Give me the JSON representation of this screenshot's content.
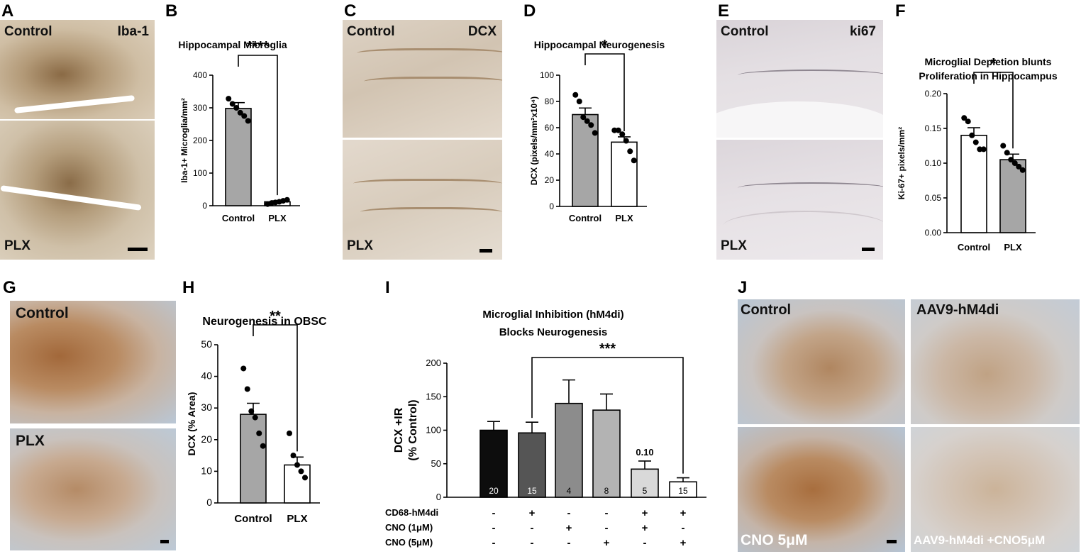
{
  "panels": {
    "A": {
      "letter": "A",
      "top_label": "Control",
      "top_marker": "Iba-1",
      "bottom_label": "PLX"
    },
    "B": {
      "letter": "B"
    },
    "C": {
      "letter": "C",
      "top_label": "Control",
      "top_marker": "DCX",
      "bottom_label": "PLX"
    },
    "D": {
      "letter": "D"
    },
    "E": {
      "letter": "E",
      "top_label": "Control",
      "top_marker": "ki67",
      "bottom_label": "PLX"
    },
    "F": {
      "letter": "F"
    },
    "G": {
      "letter": "G",
      "top_label": "Control",
      "bottom_label": "PLX"
    },
    "H": {
      "letter": "H"
    },
    "I": {
      "letter": "I"
    },
    "J": {
      "letter": "J",
      "tl_label": "Control",
      "tr_label": "AAV9-hM4di",
      "bl_label": "CNO 5μM",
      "br_label": "AAV9-hM4di +CNO5μM"
    }
  },
  "colors": {
    "gray_bar": "#a6a6a6",
    "white_bar": "#ffffff",
    "black": "#000000"
  },
  "chart_data": [
    {
      "id": "B",
      "type": "bar",
      "title": "Hippocampal Microglia",
      "ylabel": "Iba-1+ Microglia/mm²",
      "categories": [
        "Control",
        "PLX"
      ],
      "values": [
        298,
        12
      ],
      "sem": [
        18,
        3
      ],
      "fills": [
        "#a6a6a6",
        "#ffffff"
      ],
      "points": [
        [
          328,
          312,
          300,
          285,
          275,
          260
        ],
        [
          5,
          8,
          10,
          12,
          15,
          18
        ]
      ],
      "ylim": [
        0,
        400
      ],
      "yticks": [
        0,
        100,
        200,
        300,
        400
      ],
      "significance": "****"
    },
    {
      "id": "D",
      "type": "bar",
      "title": "Hippocampal Neurogenesis",
      "ylabel": "DCX (pixels/mm²x10⁴)",
      "categories": [
        "Control",
        "PLX"
      ],
      "values": [
        70,
        49
      ],
      "sem": [
        5,
        4
      ],
      "fills": [
        "#a6a6a6",
        "#ffffff"
      ],
      "points": [
        [
          85,
          80,
          68,
          65,
          62,
          56
        ],
        [
          58,
          58,
          55,
          50,
          42,
          35
        ]
      ],
      "ylim": [
        0,
        100
      ],
      "yticks": [
        0,
        20,
        40,
        60,
        80,
        100
      ],
      "significance": "*"
    },
    {
      "id": "F",
      "type": "bar",
      "title": "Microglial Depletion blunts",
      "subtitle": "Proliferation in Hippocampus",
      "ylabel": "Ki-67+ pixels/mm²",
      "categories": [
        "Control",
        "PLX"
      ],
      "values": [
        0.14,
        0.105
      ],
      "sem": [
        0.011,
        0.008
      ],
      "fills": [
        "#ffffff",
        "#a6a6a6"
      ],
      "points": [
        [
          0.165,
          0.16,
          0.14,
          0.13,
          0.12,
          0.12
        ],
        [
          0.125,
          0.115,
          0.105,
          0.1,
          0.095,
          0.09
        ]
      ],
      "ylim": [
        0,
        0.2
      ],
      "yticks": [
        "0.00",
        "0.05",
        "0.10",
        "0.15",
        "0.20"
      ],
      "significance": "*"
    },
    {
      "id": "H",
      "type": "bar",
      "title": "Neurogenesis in OBSC",
      "ylabel": "DCX (% Area)",
      "categories": [
        "Control",
        "PLX"
      ],
      "values": [
        28,
        12
      ],
      "sem": [
        3.5,
        2.5
      ],
      "fills": [
        "#a6a6a6",
        "#ffffff"
      ],
      "points": [
        [
          42.5,
          36,
          29,
          27,
          22,
          18
        ],
        [
          22,
          15,
          12,
          10,
          8
        ]
      ],
      "ylim": [
        0,
        50
      ],
      "yticks": [
        0,
        10,
        20,
        30,
        40,
        50
      ],
      "significance": "**"
    },
    {
      "id": "I",
      "type": "bar",
      "title": "Microglial Inhibition (hM4di)",
      "subtitle": "Blocks Neurogenesis",
      "ylabel": "DCX +IR",
      "ylabel2": "(% Control)",
      "values": [
        100,
        96,
        140,
        130,
        42,
        23
      ],
      "sem": [
        13,
        16,
        35,
        24,
        12,
        6
      ],
      "fills": [
        "#0d0d0d",
        "#555555",
        "#8c8c8c",
        "#b3b3b3",
        "#d9d9d9",
        "#ffffff"
      ],
      "n_labels": [
        "20",
        "15",
        "4",
        "8",
        "5",
        "15"
      ],
      "n_colors": [
        "#ffffff",
        "#ffffff",
        "#000000",
        "#000000",
        "#000000",
        "#000000"
      ],
      "annotation": "0.10",
      "ylim": [
        0,
        200
      ],
      "yticks": [
        0,
        50,
        100,
        150,
        200
      ],
      "significance": "***",
      "conditions": [
        {
          "name": "CD68-hM4di",
          "signs": [
            "-",
            "+",
            "-",
            "-",
            "+",
            "+"
          ]
        },
        {
          "name": "CNO (1μM)",
          "signs": [
            "-",
            "-",
            "+",
            "-",
            "+",
            "-"
          ]
        },
        {
          "name": "CNO (5μM)",
          "signs": [
            "-",
            "-",
            "-",
            "+",
            "-",
            "+"
          ]
        }
      ]
    }
  ]
}
